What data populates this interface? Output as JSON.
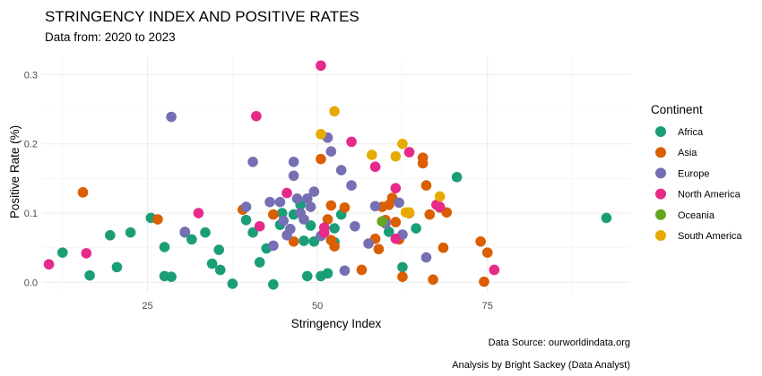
{
  "chart_data": {
    "type": "scatter",
    "title": "STRINGENCY INDEX AND POSITIVE RATES",
    "subtitle": "Data from: 2020 to 2023",
    "xlabel": "Stringency Index",
    "ylabel": "Positive Rate (%)",
    "xlim": [
      9.5,
      96
    ],
    "ylim": [
      -0.015,
      0.325
    ],
    "xticks": [
      25,
      50,
      75
    ],
    "yticks": [
      0.0,
      0.1,
      0.2,
      0.3
    ],
    "ytick_labels": [
      "0.0",
      "0.1",
      "0.2",
      "0.3"
    ],
    "grid": true,
    "legend": {
      "title": "Continent",
      "position": "right"
    },
    "caption_lines": [
      "Data Source: ourworldindata.org",
      "Analysis by Bright Sackey (Data Analyst)"
    ],
    "series": [
      {
        "name": "Africa",
        "color": "#1b9e77",
        "points": [
          [
            12.5,
            0.043
          ],
          [
            16.5,
            0.01
          ],
          [
            19.5,
            0.068
          ],
          [
            20.5,
            0.022
          ],
          [
            22.5,
            0.072
          ],
          [
            25.5,
            0.093
          ],
          [
            27.5,
            0.009
          ],
          [
            27.5,
            0.051
          ],
          [
            28.5,
            0.008
          ],
          [
            30.5,
            0.072
          ],
          [
            31.5,
            0.062
          ],
          [
            33.5,
            0.072
          ],
          [
            34.5,
            0.027
          ],
          [
            35.5,
            0.047
          ],
          [
            35.7,
            0.018
          ],
          [
            37.5,
            -0.002
          ],
          [
            39.5,
            0.09
          ],
          [
            40.5,
            0.072
          ],
          [
            41.5,
            0.029
          ],
          [
            42.5,
            0.049
          ],
          [
            43.5,
            -0.003
          ],
          [
            44.5,
            0.083
          ],
          [
            44.8,
            0.1
          ],
          [
            46.5,
            0.098
          ],
          [
            47.5,
            0.112
          ],
          [
            48.0,
            0.06
          ],
          [
            48.5,
            0.009
          ],
          [
            49.0,
            0.082
          ],
          [
            49.5,
            0.059
          ],
          [
            50.5,
            0.009
          ],
          [
            51.5,
            0.013
          ],
          [
            52.5,
            0.078
          ],
          [
            52.5,
            0.058
          ],
          [
            53.5,
            0.098
          ],
          [
            60.5,
            0.073
          ],
          [
            62.5,
            0.022
          ],
          [
            64.5,
            0.078
          ],
          [
            70.5,
            0.152
          ],
          [
            92.5,
            0.093
          ]
        ]
      },
      {
        "name": "Asia",
        "color": "#d95f02",
        "points": [
          [
            15.5,
            0.13
          ],
          [
            26.5,
            0.091
          ],
          [
            39.0,
            0.105
          ],
          [
            43.5,
            0.098
          ],
          [
            46.5,
            0.059
          ],
          [
            50.5,
            0.178
          ],
          [
            51.5,
            0.091
          ],
          [
            52.0,
            0.111
          ],
          [
            52.0,
            0.061
          ],
          [
            52.5,
            0.052
          ],
          [
            54.0,
            0.108
          ],
          [
            56.5,
            0.018
          ],
          [
            58.5,
            0.063
          ],
          [
            59.0,
            0.048
          ],
          [
            59.5,
            0.109
          ],
          [
            60.0,
            0.09
          ],
          [
            60.5,
            0.112
          ],
          [
            61.0,
            0.122
          ],
          [
            61.5,
            0.087
          ],
          [
            62.0,
            0.062
          ],
          [
            62.5,
            0.008
          ],
          [
            63.5,
            0.1
          ],
          [
            65.5,
            0.18
          ],
          [
            65.5,
            0.172
          ],
          [
            66.0,
            0.14
          ],
          [
            66.5,
            0.098
          ],
          [
            67.0,
            0.004
          ],
          [
            68.0,
            0.108
          ],
          [
            68.5,
            0.05
          ],
          [
            69.0,
            0.101
          ],
          [
            74.0,
            0.059
          ],
          [
            74.5,
            0.001
          ],
          [
            75.0,
            0.043
          ]
        ]
      },
      {
        "name": "Europe",
        "color": "#7570b3",
        "points": [
          [
            28.5,
            0.239
          ],
          [
            30.5,
            0.073
          ],
          [
            39.5,
            0.109
          ],
          [
            40.5,
            0.174
          ],
          [
            43.0,
            0.116
          ],
          [
            43.5,
            0.053
          ],
          [
            44.5,
            0.116
          ],
          [
            45.0,
            0.089
          ],
          [
            45.5,
            0.068
          ],
          [
            46.0,
            0.077
          ],
          [
            46.5,
            0.174
          ],
          [
            46.5,
            0.154
          ],
          [
            47.0,
            0.121
          ],
          [
            47.5,
            0.1
          ],
          [
            48.0,
            0.091
          ],
          [
            48.5,
            0.121
          ],
          [
            49.0,
            0.109
          ],
          [
            49.5,
            0.131
          ],
          [
            50.5,
            0.067
          ],
          [
            51.5,
            0.209
          ],
          [
            52.0,
            0.189
          ],
          [
            53.5,
            0.162
          ],
          [
            54.0,
            0.017
          ],
          [
            55.0,
            0.14
          ],
          [
            55.5,
            0.081
          ],
          [
            57.5,
            0.056
          ],
          [
            58.5,
            0.11
          ],
          [
            60.0,
            0.085
          ],
          [
            62.0,
            0.115
          ],
          [
            62.5,
            0.069
          ],
          [
            66.0,
            0.036
          ]
        ]
      },
      {
        "name": "North America",
        "color": "#e7298a",
        "points": [
          [
            10.5,
            0.026
          ],
          [
            16.0,
            0.042
          ],
          [
            32.5,
            0.1
          ],
          [
            41.0,
            0.24
          ],
          [
            41.5,
            0.081
          ],
          [
            45.5,
            0.129
          ],
          [
            50.5,
            0.313
          ],
          [
            51.0,
            0.079
          ],
          [
            51.0,
            0.072
          ],
          [
            55.0,
            0.203
          ],
          [
            58.5,
            0.167
          ],
          [
            61.5,
            0.136
          ],
          [
            61.5,
            0.063
          ],
          [
            63.5,
            0.188
          ],
          [
            67.5,
            0.112
          ],
          [
            68.0,
            0.109
          ],
          [
            76.0,
            0.018
          ]
        ]
      },
      {
        "name": "Oceania",
        "color": "#66a61e",
        "points": [
          [
            59.5,
            0.088
          ]
        ]
      },
      {
        "name": "South America",
        "color": "#e6ab02",
        "points": [
          [
            50.5,
            0.214
          ],
          [
            52.5,
            0.247
          ],
          [
            58.0,
            0.184
          ],
          [
            61.5,
            0.182
          ],
          [
            62.5,
            0.2
          ],
          [
            63.0,
            0.101
          ],
          [
            63.5,
            0.101
          ],
          [
            68.0,
            0.124
          ]
        ]
      }
    ]
  }
}
